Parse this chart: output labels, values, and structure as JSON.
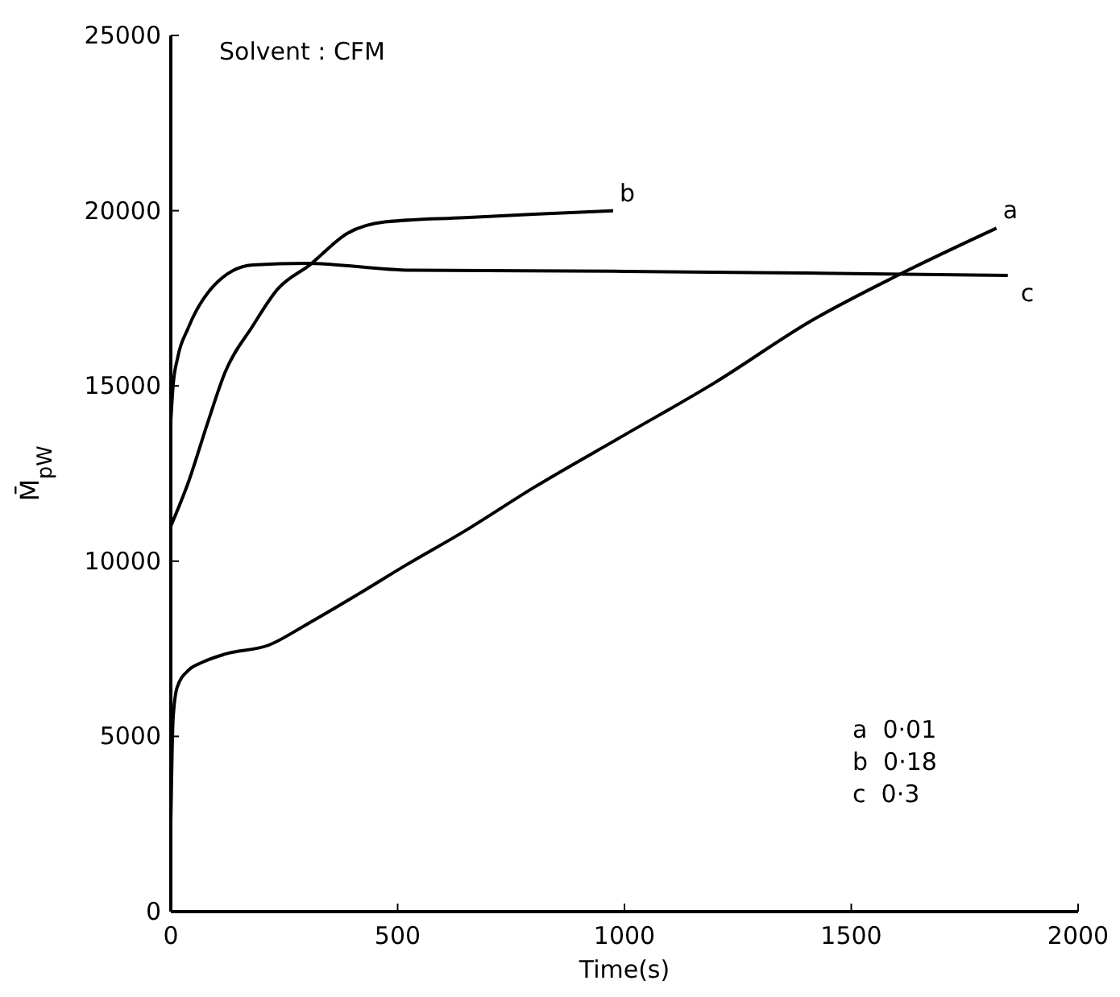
{
  "chart_data": {
    "type": "line",
    "xlabel": "Time(s)",
    "ylabel": "M̄$_{pW}$",
    "xlim": [
      0,
      2000
    ],
    "ylim": [
      0,
      25000
    ],
    "xticks": [
      0,
      500,
      1000,
      1500,
      2000
    ],
    "yticks": [
      0,
      5000,
      10000,
      15000,
      20000,
      25000
    ],
    "grid": false,
    "marker": "none",
    "line_style": "solid",
    "annotations": [
      "Solvent : CFM",
      "a  0·01",
      "b  0·18",
      "c  0·3"
    ],
    "series": [
      {
        "name": "a",
        "color": "#000000",
        "x": [
          0,
          5,
          14,
          40,
          67,
          120,
          215,
          300,
          412,
          520,
          648,
          800,
          1000,
          1200,
          1412,
          1600,
          1820
        ],
        "values": [
          2500,
          5500,
          6400,
          6900,
          7100,
          7350,
          7600,
          8200,
          9050,
          9900,
          10860,
          12100,
          13600,
          15100,
          16860,
          18140,
          19500
        ]
      },
      {
        "name": "b",
        "color": "#000000",
        "x": [
          0,
          40,
          80,
          120,
          180,
          236,
          306,
          390,
          472,
          648,
          800,
          975
        ],
        "values": [
          11000,
          12300,
          13900,
          15400,
          16700,
          17770,
          18450,
          19360,
          19680,
          19800,
          19900,
          20000
        ]
      },
      {
        "name": "c",
        "color": "#000000",
        "x": [
          0,
          5,
          15,
          38,
          95,
          180,
          296,
          530,
          1000,
          1400,
          1845
        ],
        "values": [
          14000,
          15000,
          15800,
          16640,
          17860,
          18450,
          18500,
          18300,
          18270,
          18220,
          18150
        ]
      }
    ]
  }
}
